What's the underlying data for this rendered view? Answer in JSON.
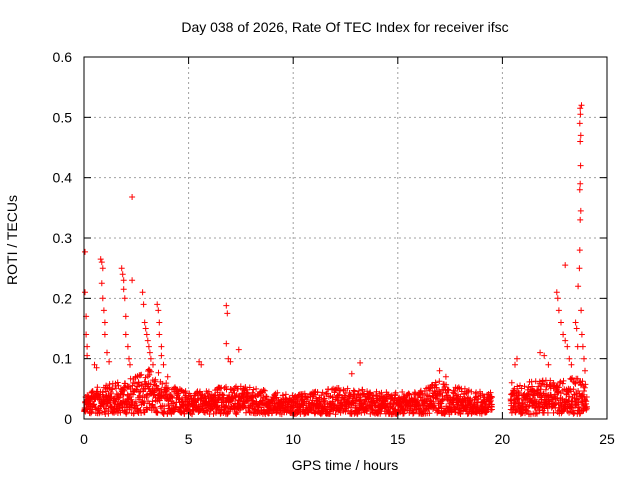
{
  "chart_data": {
    "type": "scatter",
    "title": "Day 038 of 2026, Rate Of TEC Index for receiver ifsc",
    "xlabel": "GPS time / hours",
    "ylabel": "ROTI / TECUs",
    "xlim": [
      0,
      25
    ],
    "ylim": [
      0,
      0.6
    ],
    "xticks": [
      "0",
      "5",
      "10",
      "15",
      "20",
      "25"
    ],
    "yticks": [
      "0",
      "0.1",
      "0.2",
      "0.3",
      "0.4",
      "0.5",
      "0.6"
    ],
    "grid": true,
    "marker": "+",
    "color": "#ff0000",
    "gaps": [
      [
        19.5,
        20.4
      ]
    ],
    "baseline_profile": [
      [
        0.0,
        0.022
      ],
      [
        0.5,
        0.035
      ],
      [
        1.0,
        0.04
      ],
      [
        2.0,
        0.045
      ],
      [
        3.0,
        0.06
      ],
      [
        3.6,
        0.055
      ],
      [
        4.0,
        0.04
      ],
      [
        5.0,
        0.03
      ],
      [
        6.0,
        0.032
      ],
      [
        7.0,
        0.04
      ],
      [
        8.0,
        0.035
      ],
      [
        9.0,
        0.03
      ],
      [
        10.0,
        0.025
      ],
      [
        11.0,
        0.03
      ],
      [
        12.0,
        0.035
      ],
      [
        13.0,
        0.035
      ],
      [
        14.0,
        0.03
      ],
      [
        15.0,
        0.03
      ],
      [
        16.0,
        0.03
      ],
      [
        17.0,
        0.045
      ],
      [
        18.0,
        0.035
      ],
      [
        19.0,
        0.03
      ],
      [
        19.2,
        0.03
      ],
      [
        20.5,
        0.04
      ],
      [
        21.5,
        0.045
      ],
      [
        22.5,
        0.045
      ],
      [
        23.5,
        0.05
      ],
      [
        24.0,
        0.04
      ]
    ],
    "spikes": [
      [
        0.05,
        0.277
      ],
      [
        0.05,
        0.21
      ],
      [
        0.1,
        0.17
      ],
      [
        0.1,
        0.14
      ],
      [
        0.15,
        0.12
      ],
      [
        0.15,
        0.105
      ],
      [
        0.5,
        0.09
      ],
      [
        0.6,
        0.085
      ],
      [
        0.8,
        0.265
      ],
      [
        0.85,
        0.26
      ],
      [
        0.9,
        0.25
      ],
      [
        0.85,
        0.225
      ],
      [
        0.9,
        0.2
      ],
      [
        0.95,
        0.18
      ],
      [
        1.0,
        0.16
      ],
      [
        1.0,
        0.14
      ],
      [
        1.1,
        0.11
      ],
      [
        1.2,
        0.095
      ],
      [
        1.8,
        0.25
      ],
      [
        1.85,
        0.24
      ],
      [
        1.9,
        0.23
      ],
      [
        1.9,
        0.215
      ],
      [
        1.95,
        0.2
      ],
      [
        2.0,
        0.17
      ],
      [
        2.0,
        0.14
      ],
      [
        2.1,
        0.12
      ],
      [
        2.15,
        0.1
      ],
      [
        2.2,
        0.09
      ],
      [
        2.3,
        0.368
      ],
      [
        2.3,
        0.23
      ],
      [
        2.8,
        0.21
      ],
      [
        2.85,
        0.19
      ],
      [
        2.9,
        0.16
      ],
      [
        2.95,
        0.15
      ],
      [
        3.0,
        0.14
      ],
      [
        3.05,
        0.13
      ],
      [
        3.1,
        0.12
      ],
      [
        3.15,
        0.11
      ],
      [
        3.2,
        0.1
      ],
      [
        3.3,
        0.09
      ],
      [
        3.5,
        0.19
      ],
      [
        3.55,
        0.18
      ],
      [
        3.6,
        0.16
      ],
      [
        3.6,
        0.14
      ],
      [
        3.7,
        0.12
      ],
      [
        3.7,
        0.105
      ],
      [
        3.8,
        0.09
      ],
      [
        4.0,
        0.07
      ],
      [
        5.5,
        0.095
      ],
      [
        5.6,
        0.09
      ],
      [
        6.8,
        0.188
      ],
      [
        6.85,
        0.175
      ],
      [
        6.8,
        0.125
      ],
      [
        6.9,
        0.1
      ],
      [
        7.0,
        0.095
      ],
      [
        7.4,
        0.115
      ],
      [
        13.2,
        0.093
      ],
      [
        12.8,
        0.075
      ],
      [
        17.0,
        0.08
      ],
      [
        17.3,
        0.07
      ],
      [
        20.6,
        0.09
      ],
      [
        20.7,
        0.1
      ],
      [
        21.8,
        0.11
      ],
      [
        22.0,
        0.105
      ],
      [
        22.2,
        0.09
      ],
      [
        22.6,
        0.21
      ],
      [
        22.65,
        0.2
      ],
      [
        22.7,
        0.18
      ],
      [
        22.8,
        0.16
      ],
      [
        22.9,
        0.14
      ],
      [
        23.0,
        0.255
      ],
      [
        23.0,
        0.13
      ],
      [
        23.1,
        0.12
      ],
      [
        23.2,
        0.1
      ],
      [
        23.3,
        0.09
      ],
      [
        23.5,
        0.16
      ],
      [
        23.55,
        0.15
      ],
      [
        23.6,
        0.12
      ],
      [
        23.62,
        0.22
      ],
      [
        23.68,
        0.25
      ],
      [
        23.7,
        0.28
      ],
      [
        23.72,
        0.33
      ],
      [
        23.75,
        0.345
      ],
      [
        23.7,
        0.38
      ],
      [
        23.72,
        0.39
      ],
      [
        23.74,
        0.42
      ],
      [
        23.72,
        0.46
      ],
      [
        23.75,
        0.47
      ],
      [
        23.7,
        0.49
      ],
      [
        23.73,
        0.505
      ],
      [
        23.72,
        0.515
      ],
      [
        23.78,
        0.52
      ],
      [
        23.76,
        0.18
      ],
      [
        23.8,
        0.14
      ],
      [
        23.85,
        0.12
      ],
      [
        23.9,
        0.1
      ],
      [
        23.95,
        0.08
      ]
    ]
  }
}
